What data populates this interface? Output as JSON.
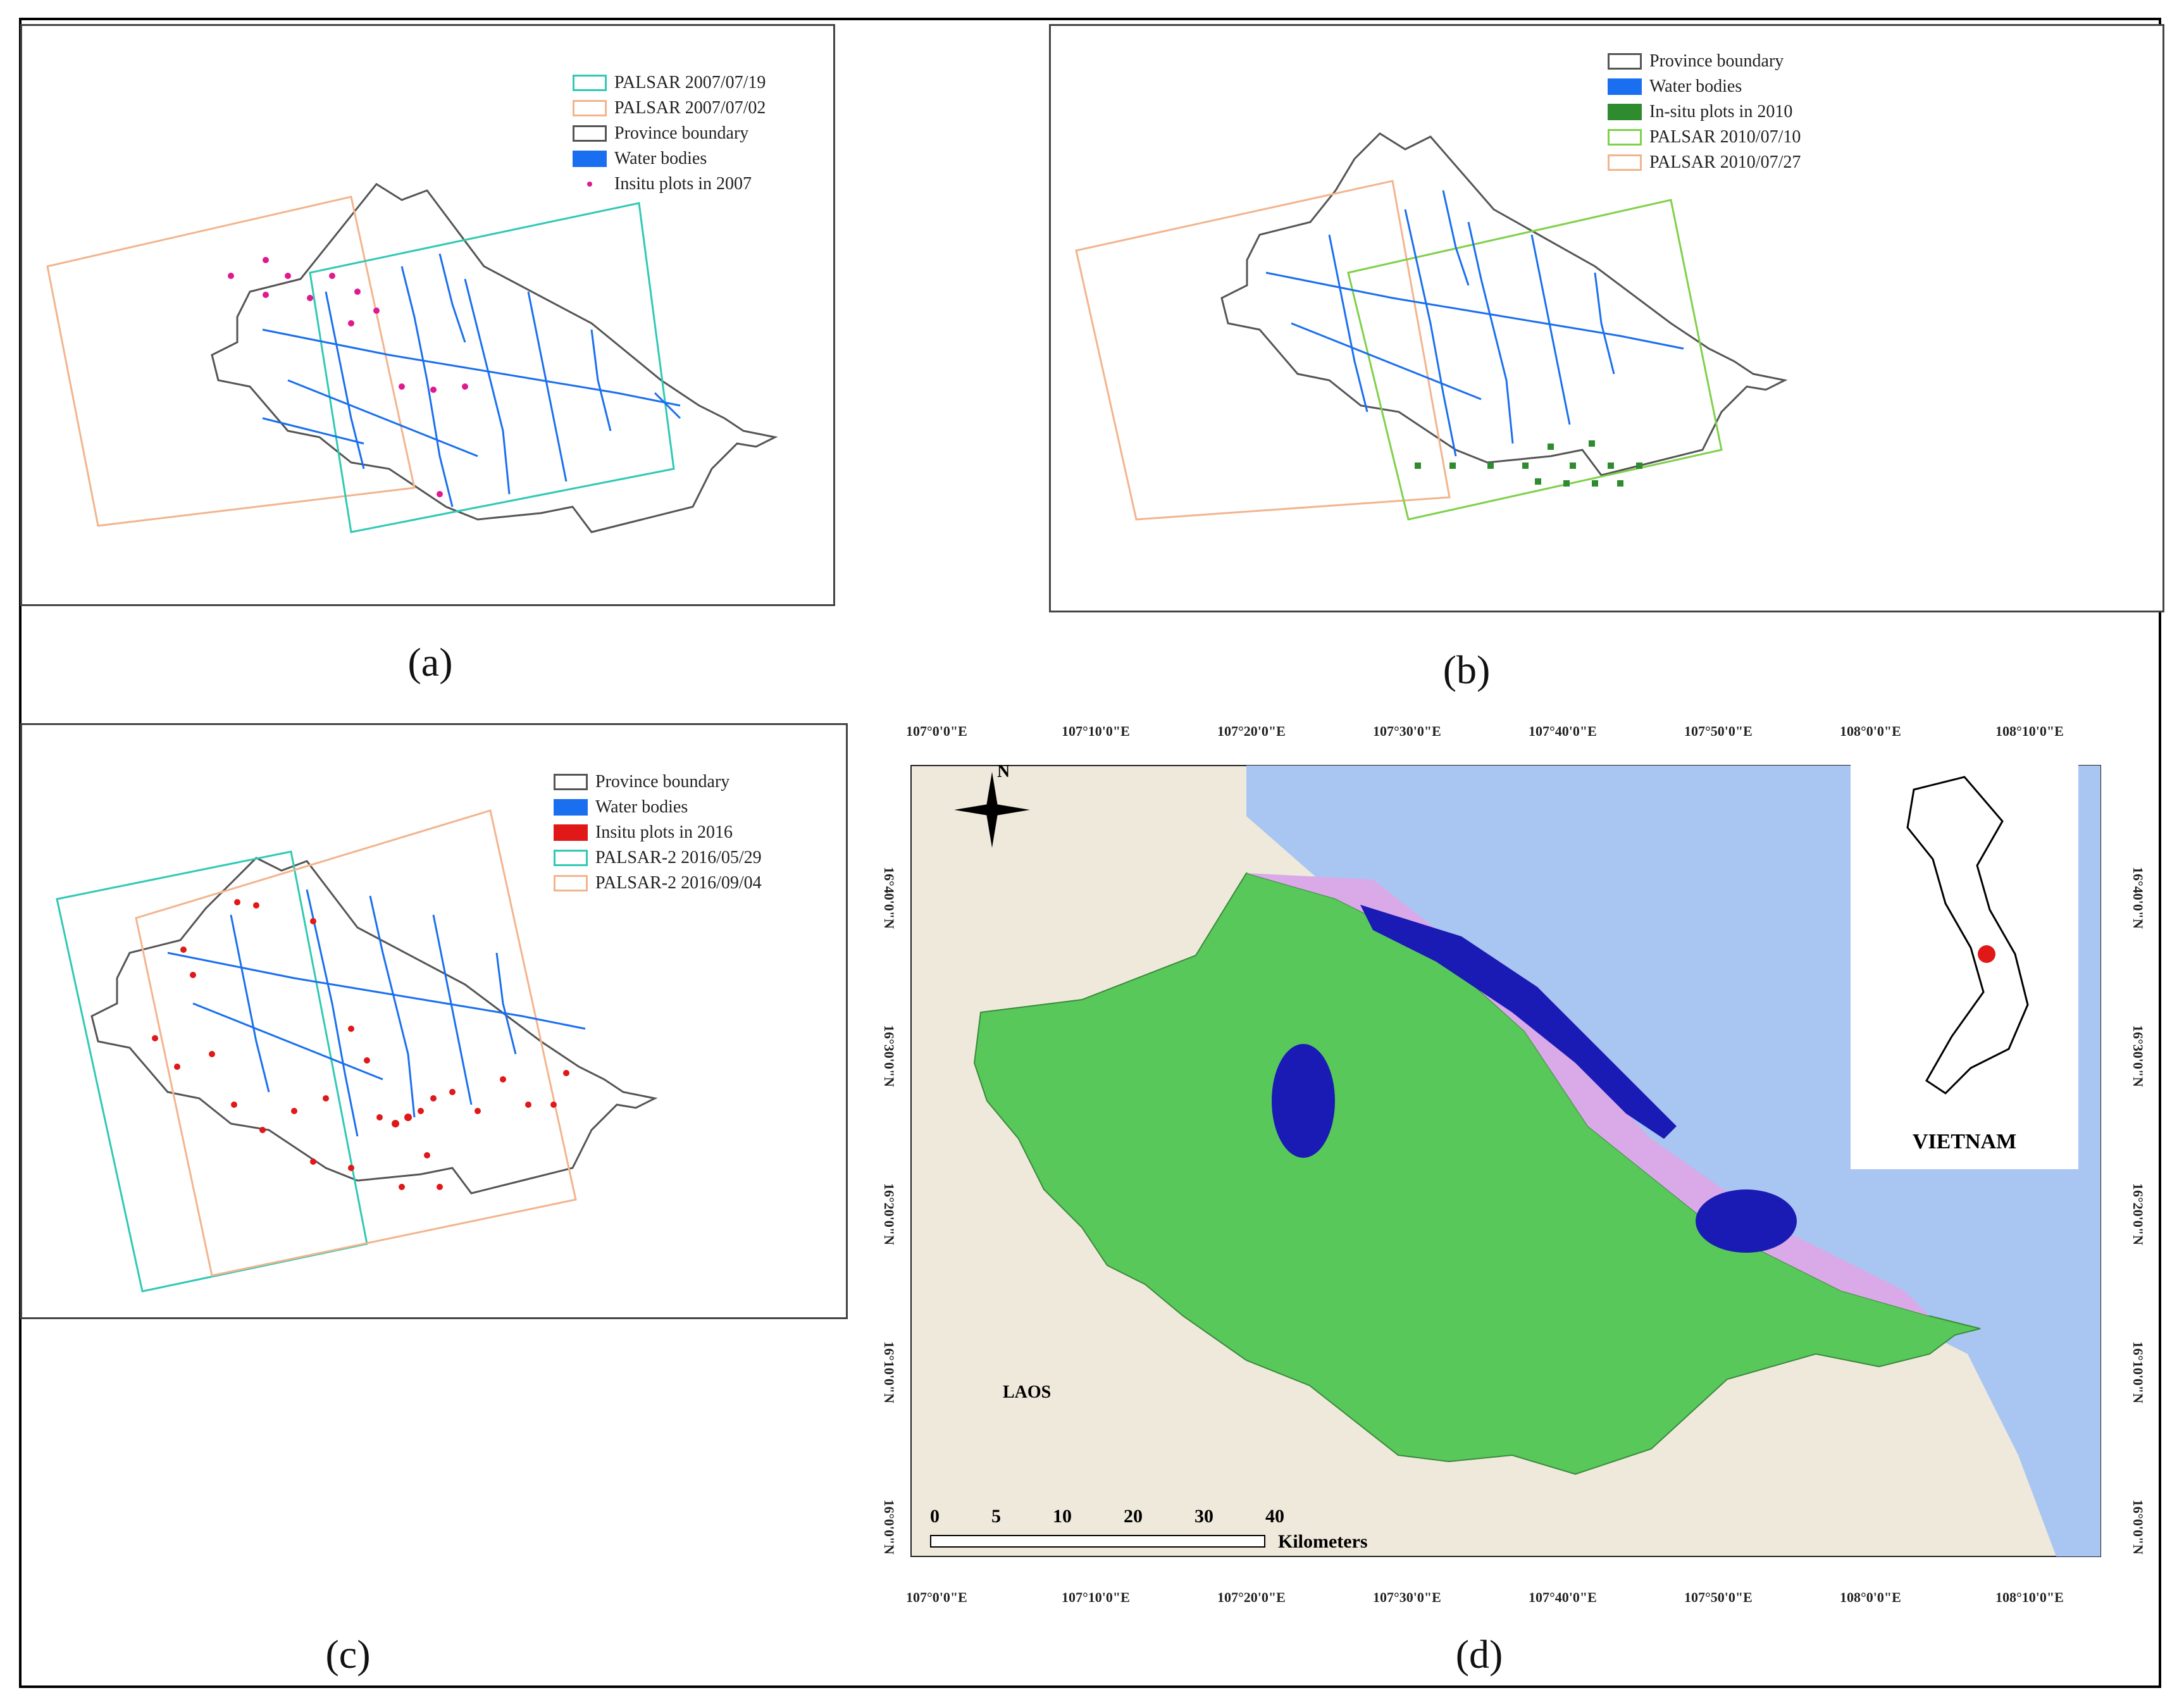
{
  "panels": {
    "a": {
      "caption": "(a)",
      "legend": [
        {
          "label": "PALSAR 2007/07/19",
          "kind": "rect",
          "color": "#2fc9b4"
        },
        {
          "label": "PALSAR 2007/07/02",
          "kind": "rect",
          "color": "#f2b48e"
        },
        {
          "label": "Province boundary",
          "kind": "rect",
          "color": "#555555"
        },
        {
          "label": "Water bodies",
          "kind": "fill",
          "color": "#1a6ff0"
        },
        {
          "label": "Insitu plots in 2007",
          "kind": "dot",
          "color": "#e0198f"
        }
      ]
    },
    "b": {
      "caption": "(b)",
      "legend": [
        {
          "label": "Province boundary",
          "kind": "rect",
          "color": "#555555"
        },
        {
          "label": "Water bodies",
          "kind": "fill",
          "color": "#1a6ff0"
        },
        {
          "label": "In-situ plots in 2010",
          "kind": "fill",
          "color": "#2e8b2e"
        },
        {
          "label": "PALSAR 2010/07/10",
          "kind": "rect",
          "color": "#7fd04a"
        },
        {
          "label": "PALSAR 2010/07/27",
          "kind": "rect",
          "color": "#f2b48e"
        }
      ]
    },
    "c": {
      "caption": "(c)",
      "legend": [
        {
          "label": "Province boundary",
          "kind": "rect",
          "color": "#555555"
        },
        {
          "label": "Water bodies",
          "kind": "fill",
          "color": "#1a6ff0"
        },
        {
          "label": "Insitu plots in 2016",
          "kind": "fill",
          "color": "#e01818"
        },
        {
          "label": "PALSAR-2 2016/05/29",
          "kind": "rect",
          "color": "#2fc9b4"
        },
        {
          "label": "PALSAR-2 2016/09/04",
          "kind": "rect",
          "color": "#f2b48e"
        }
      ]
    },
    "d": {
      "caption": "(d)",
      "lon_ticks": [
        "107°0'0\"E",
        "107°10'0\"E",
        "107°20'0\"E",
        "107°30'0\"E",
        "107°40'0\"E",
        "107°50'0\"E",
        "108°0'0\"E",
        "108°10'0\"E"
      ],
      "lat_ticks": [
        "16°40'0\"N",
        "16°30'0\"N",
        "16°20'0\"N",
        "16°10'0\"N",
        "16°0'0\"N"
      ],
      "north_label": "N",
      "laos_label": "LAOS",
      "inset_label": "VIETNAM",
      "scale_ticks": [
        "0",
        "5",
        "10",
        "20",
        "30",
        "40"
      ],
      "scale_unit": "Kilometers"
    }
  }
}
